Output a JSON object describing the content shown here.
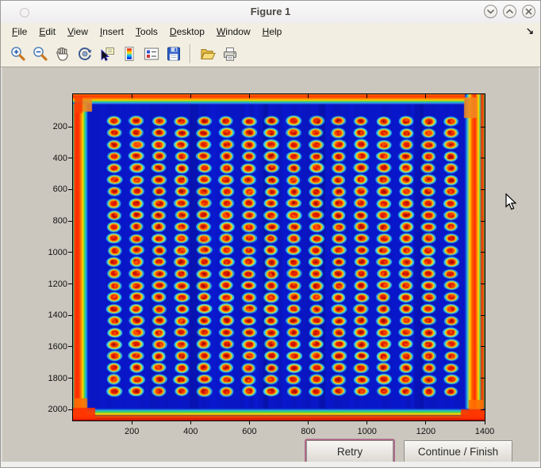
{
  "window": {
    "title": "Figure 1",
    "controls": [
      {
        "name": "minimize-button",
        "glyph": "chevron-down"
      },
      {
        "name": "maximize-button",
        "glyph": "chevron-up"
      },
      {
        "name": "close-button",
        "glyph": "x"
      }
    ]
  },
  "menu": {
    "items": [
      "File",
      "Edit",
      "View",
      "Insert",
      "Tools",
      "Desktop",
      "Window",
      "Help"
    ],
    "dock_arrow": "↘"
  },
  "toolbar": {
    "icons": [
      "zoom-in",
      "zoom-out",
      "pan",
      "rotate-3d",
      "data-cursor",
      "colorbar",
      "insert-legend",
      "save-figure",
      "separator",
      "open-file",
      "print"
    ]
  },
  "chart_data": {
    "type": "heatmap",
    "title": "",
    "xlabel": "",
    "ylabel": "",
    "x_ticks": [
      200,
      400,
      600,
      800,
      1000,
      1200,
      1400
    ],
    "y_ticks": [
      200,
      400,
      600,
      800,
      1000,
      1200,
      1400,
      1600,
      1800,
      2000
    ],
    "x_range": [
      0,
      1400
    ],
    "y_range": [
      0,
      2080
    ],
    "grid": false,
    "colormap": "jet",
    "description": "Thermal/intensity image of a 384-well microplate: grid of hot (red/orange) spots with cyan halos on a deep blue background, hot red-orange bands along all four plate edges.",
    "well_grid": {
      "rows": 24,
      "cols": 16
    },
    "colors": {
      "background_blue": "#0A18CE",
      "halo_cyan": "#2ECCF2",
      "ring_yellow": "#FFE100",
      "ring_orange": "#FF7E00",
      "center_red": "#E52000",
      "core_dark_red": "#9C0A00",
      "border_hot": "#FF3C00"
    }
  },
  "actions": {
    "retry_label": "Retry",
    "continue_label": "Continue / Finish"
  },
  "cursor": {
    "type": "arrow-pointer"
  }
}
